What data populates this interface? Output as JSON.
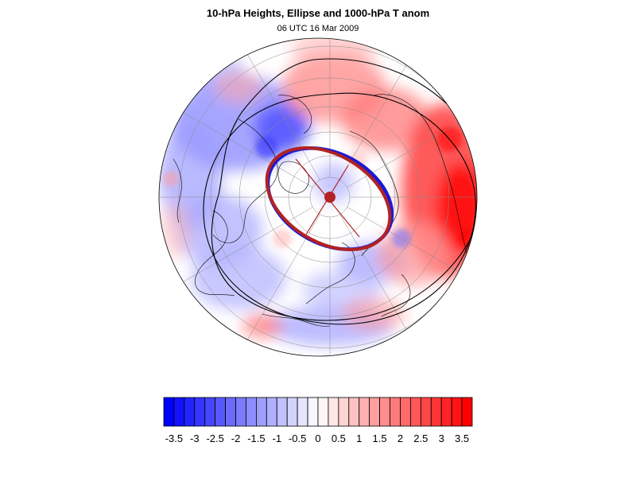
{
  "title": "10-hPa Heights, Ellipse and 1000-hPa T anom",
  "subtitle": "06 UTC 16 Mar 2009",
  "map": {
    "projection": "polar stereographic (north pole)",
    "fill_variable": "1000-hPa temperature anomaly",
    "contour_variable": "10-hPa geopotential height",
    "contour_color": "#000000",
    "ellipse_colors": [
      "#1a1ad4",
      "#b22222"
    ],
    "ellipse_center_color": "#b22222",
    "grid_color": "#888888",
    "coastline_color": "#000000"
  },
  "colorbar": {
    "tick_labels": [
      "-3.5",
      "-3",
      "-2.5",
      "-2",
      "-1.5",
      "-1",
      "-0.5",
      "0",
      "0.5",
      "1",
      "1.5",
      "2",
      "2.5",
      "3",
      "3.5"
    ],
    "levels": [
      -3.5,
      -3.25,
      -3,
      -2.75,
      -2.5,
      -2.25,
      -2,
      -1.75,
      -1.5,
      -1.25,
      -1,
      -0.75,
      -0.5,
      -0.25,
      0,
      0.25,
      0.5,
      0.75,
      1,
      1.25,
      1.5,
      1.75,
      2,
      2.25,
      2.5,
      2.75,
      3,
      3.25,
      3.5
    ],
    "min_color": "#0000ff",
    "mid_color": "#ffffff",
    "max_color": "#ff0000"
  }
}
